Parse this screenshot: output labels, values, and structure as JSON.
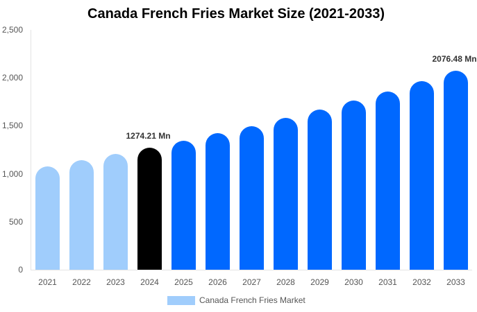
{
  "chart_data": {
    "type": "bar",
    "title": "Canada French Fries Market Size (2021-2033)",
    "xlabel": "",
    "ylabel": "",
    "ylim": [
      0,
      2500
    ],
    "yticks": [
      "0",
      "500",
      "1,000",
      "1,500",
      "2,000",
      "2,500"
    ],
    "grid": false,
    "legend_position": "bottom",
    "categories": [
      "2021",
      "2022",
      "2023",
      "2024",
      "2025",
      "2026",
      "2027",
      "2028",
      "2029",
      "2030",
      "2031",
      "2032",
      "2033"
    ],
    "series": [
      {
        "name": "Canada French Fries Market",
        "values": [
          1077,
          1142,
          1207,
          1274.21,
          1344,
          1420,
          1497,
          1580,
          1667,
          1760,
          1860,
          1965,
          2076.48
        ]
      }
    ],
    "bar_colors": [
      "#a0cdfc",
      "#a0cdfc",
      "#a0cdfc",
      "#000000",
      "#0068ff",
      "#0068ff",
      "#0068ff",
      "#0068ff",
      "#0068ff",
      "#0068ff",
      "#0068ff",
      "#0068ff",
      "#0068ff"
    ],
    "annotations": [
      {
        "category": "2024",
        "text": "1274.21 Mn"
      },
      {
        "category": "2033",
        "text": "2076.48 Mn"
      }
    ]
  },
  "legend": {
    "label": "Canada French Fries Market",
    "color": "#a0cdfc"
  }
}
